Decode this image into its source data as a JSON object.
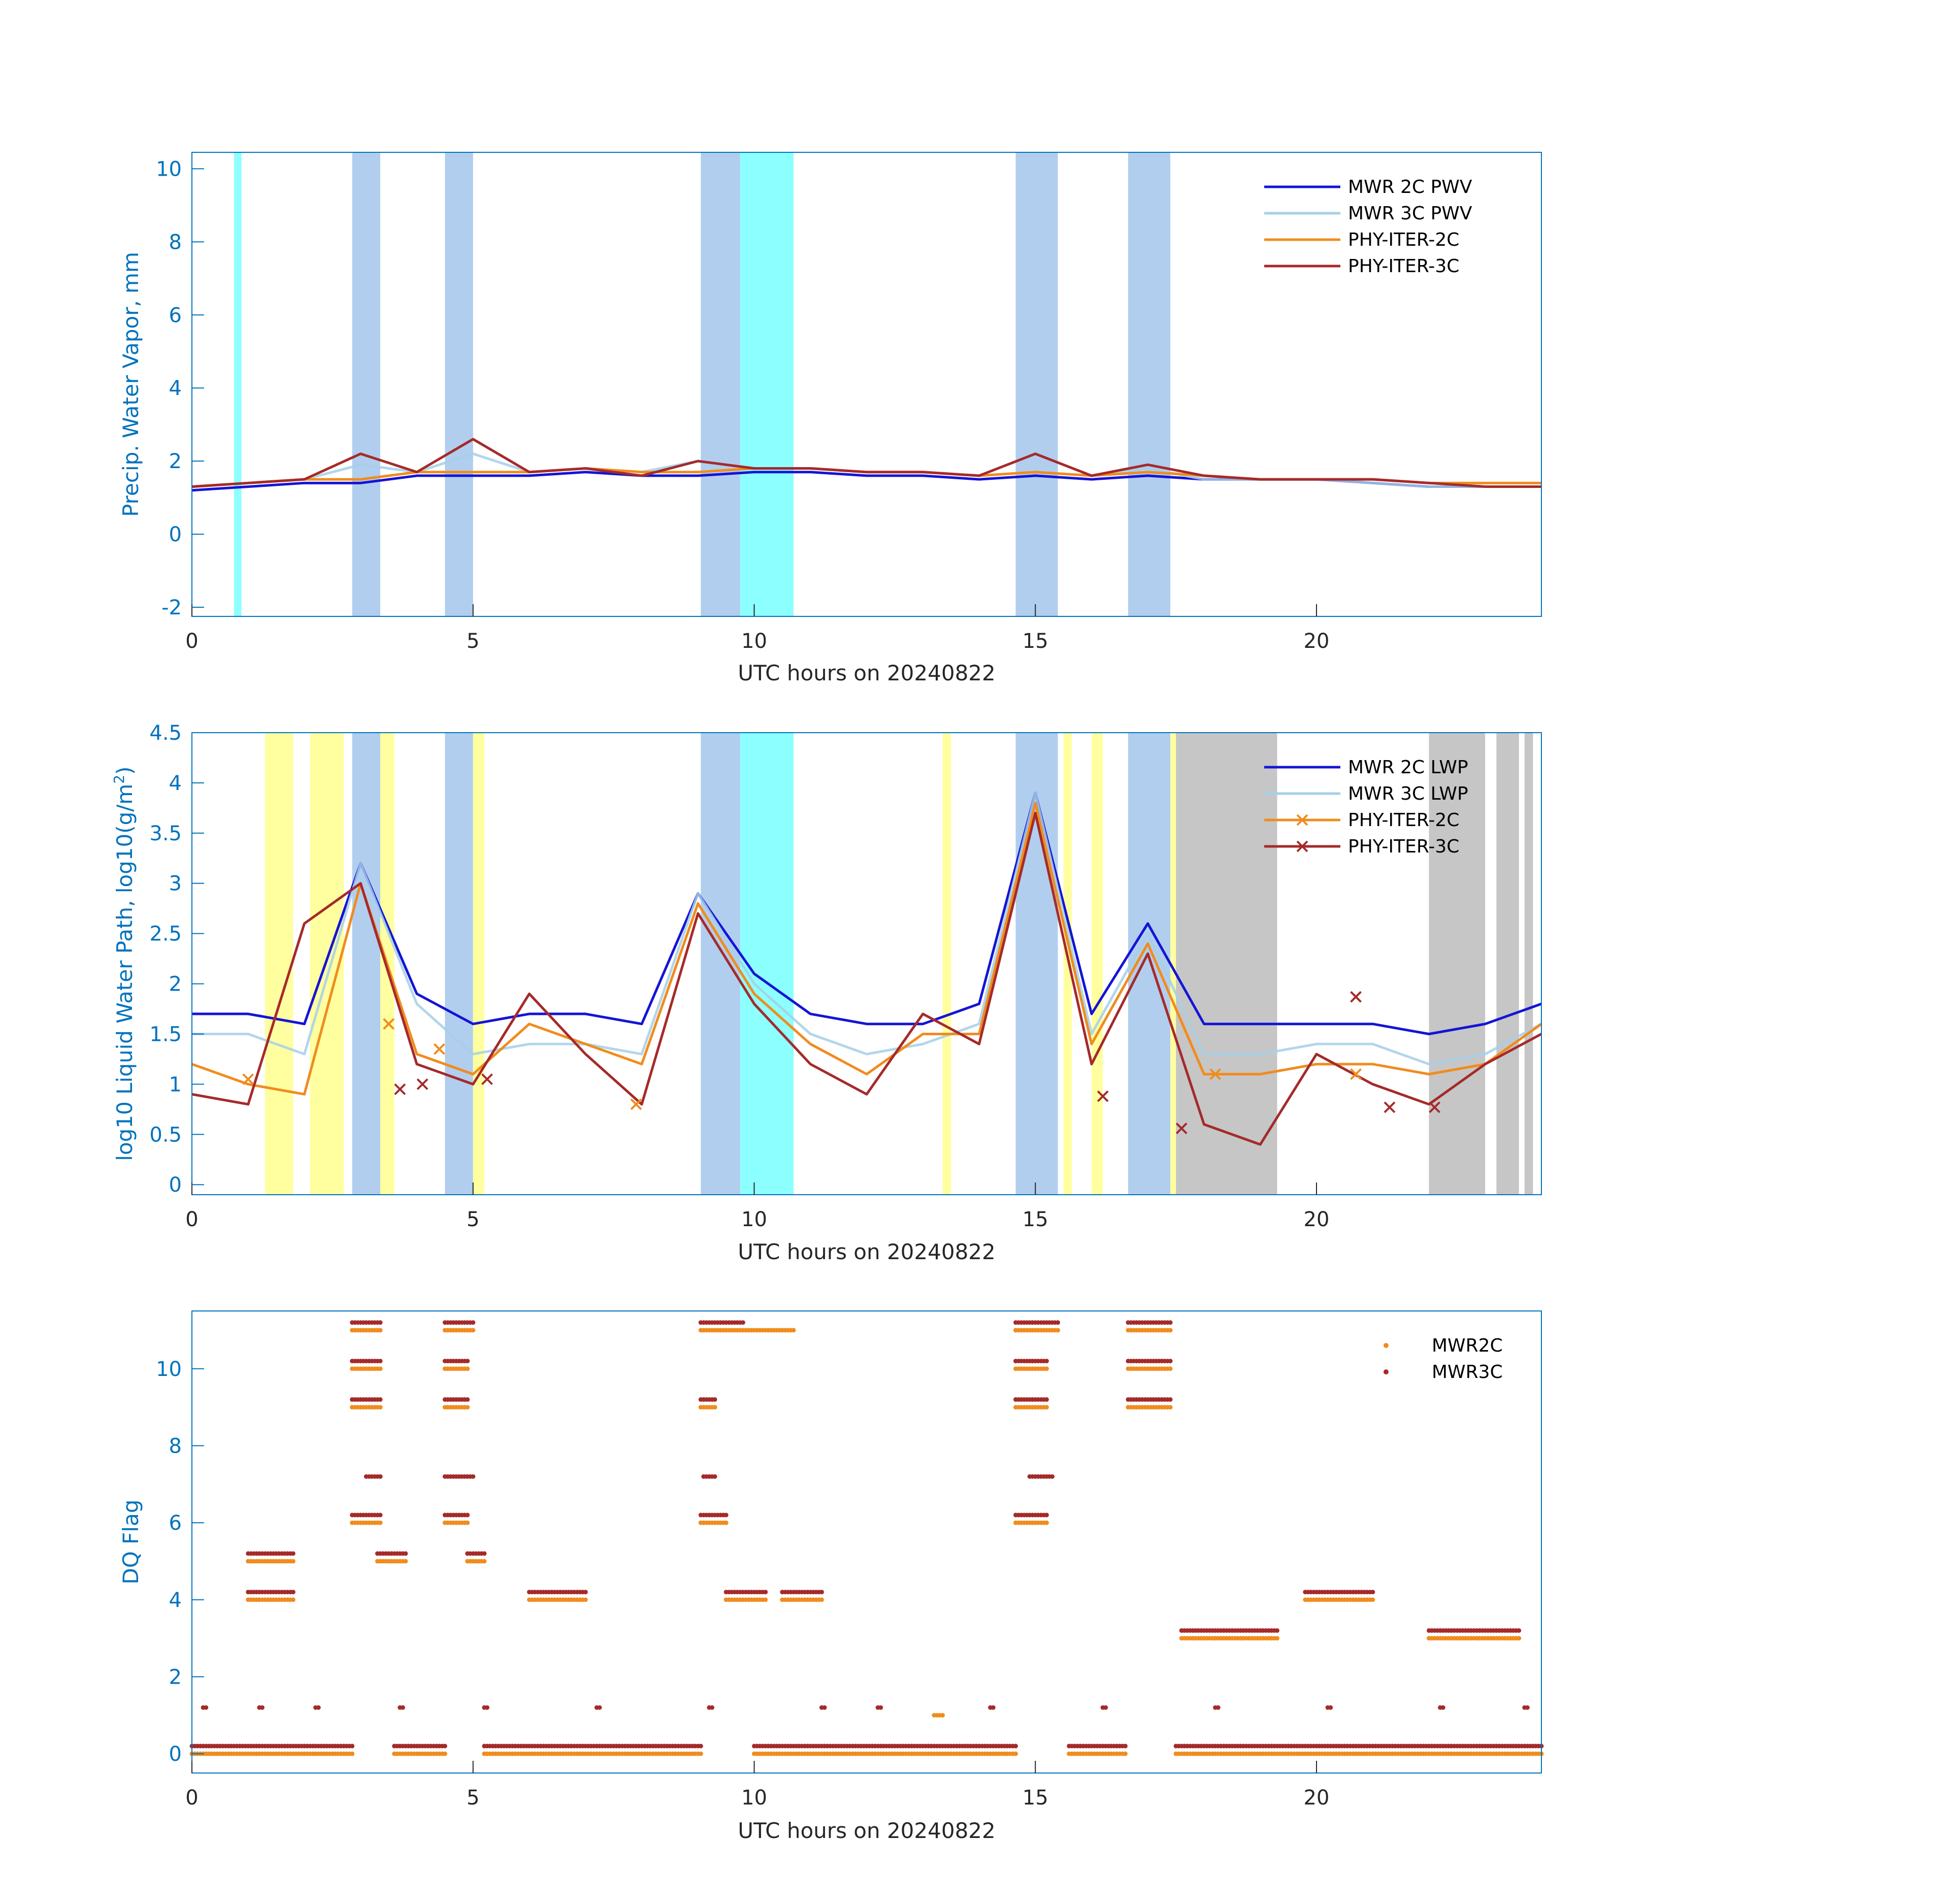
{
  "figure": {
    "date": "20240822"
  },
  "chart_data": [
    {
      "id": "pwv",
      "type": "line",
      "xlabel": "UTC hours on 20240822",
      "ylabel": "Precip. Water Vapor, mm",
      "xlim": [
        0,
        24
      ],
      "ylim": [
        -2.25,
        10.45
      ],
      "xticks": [
        0,
        5,
        10,
        15,
        20
      ],
      "yticks": [
        -2,
        0,
        2,
        4,
        6,
        8,
        10
      ],
      "legend": [
        "MWR 2C PWV",
        "MWR 3C PWV",
        "PHY-ITER-2C",
        "PHY-ITER-3C"
      ],
      "legend_position": "top-right",
      "series_colors": [
        "#1414d6",
        "#a6cfe8",
        "#f08c1e",
        "#a52a2a"
      ],
      "x": [
        0,
        1,
        2,
        3,
        4,
        5,
        6,
        7,
        8,
        9,
        10,
        11,
        12,
        13,
        14,
        15,
        16,
        17,
        18,
        19,
        20,
        21,
        22,
        23,
        24
      ],
      "series": [
        {
          "name": "MWR 2C PWV",
          "values": [
            1.2,
            1.3,
            1.4,
            1.4,
            1.6,
            1.6,
            1.6,
            1.7,
            1.6,
            1.6,
            1.7,
            1.7,
            1.6,
            1.6,
            1.5,
            1.6,
            1.5,
            1.6,
            1.5,
            1.5,
            1.5,
            1.4,
            1.3,
            1.3,
            1.3
          ]
        },
        {
          "name": "MWR 3C PWV",
          "values": [
            1.3,
            1.4,
            1.5,
            1.9,
            1.7,
            2.2,
            1.7,
            1.8,
            1.7,
            2.0,
            1.8,
            1.8,
            1.7,
            1.7,
            1.6,
            2.2,
            1.6,
            1.8,
            1.5,
            1.5,
            1.5,
            1.4,
            1.3,
            1.3,
            1.3
          ]
        },
        {
          "name": "PHY-ITER-2C",
          "values": [
            1.3,
            1.4,
            1.5,
            1.5,
            1.7,
            1.7,
            1.7,
            1.8,
            1.7,
            1.7,
            1.8,
            1.8,
            1.7,
            1.7,
            1.6,
            1.7,
            1.6,
            1.7,
            1.6,
            1.5,
            1.5,
            1.5,
            1.4,
            1.4,
            1.4
          ]
        },
        {
          "name": "PHY-ITER-3C",
          "values": [
            1.3,
            1.4,
            1.5,
            2.2,
            1.7,
            2.6,
            1.7,
            1.8,
            1.6,
            2.0,
            1.8,
            1.8,
            1.7,
            1.7,
            1.6,
            2.2,
            1.6,
            1.9,
            1.6,
            1.5,
            1.5,
            1.5,
            1.4,
            1.3,
            1.3
          ]
        }
      ],
      "shaded_spans": [
        {
          "kind": "precip",
          "start": 2.85,
          "end": 3.35
        },
        {
          "kind": "precip",
          "start": 4.5,
          "end": 5.0
        },
        {
          "kind": "precip",
          "start": 9.05,
          "end": 9.75
        },
        {
          "kind": "precip",
          "start": 14.65,
          "end": 15.4
        },
        {
          "kind": "precip",
          "start": 16.65,
          "end": 17.4
        },
        {
          "kind": "cyan",
          "start": 0.75,
          "end": 0.88
        },
        {
          "kind": "cyan",
          "start": 9.75,
          "end": 10.7
        }
      ]
    },
    {
      "id": "lwp",
      "type": "line",
      "xlabel": "UTC hours on 20240822",
      "ylabel": "log10 Liquid Water Path, log10(g/m",
      "ylabel_superscript": "2",
      "ylabel_suffix": ")",
      "xlim": [
        0,
        24
      ],
      "ylim": [
        -0.1,
        4.5
      ],
      "xticks": [
        0,
        5,
        10,
        15,
        20
      ],
      "yticks": [
        0,
        0.5,
        1,
        1.5,
        2,
        2.5,
        3,
        3.5,
        4,
        4.5
      ],
      "legend": [
        "MWR 2C LWP",
        "MWR 3C LWP",
        "PHY-ITER-2C",
        "PHY-ITER-3C"
      ],
      "legend_position": "top-right",
      "series_colors": [
        "#1414d6",
        "#a6cfe8",
        "#f08c1e",
        "#a52a2a"
      ],
      "x": [
        0,
        1,
        2,
        3,
        4,
        5,
        6,
        7,
        8,
        9,
        10,
        11,
        12,
        13,
        14,
        15,
        16,
        17,
        18,
        19,
        20,
        21,
        22,
        23,
        24
      ],
      "series": [
        {
          "name": "MWR 2C LWP",
          "values": [
            1.7,
            1.7,
            1.6,
            3.2,
            1.9,
            1.6,
            1.7,
            1.7,
            1.6,
            2.9,
            2.1,
            1.7,
            1.6,
            1.6,
            1.8,
            3.9,
            1.7,
            2.6,
            1.6,
            1.6,
            1.6,
            1.6,
            1.5,
            1.6,
            1.8
          ]
        },
        {
          "name": "MWR 3C LWP",
          "values": [
            1.5,
            1.5,
            1.3,
            3.2,
            1.8,
            1.3,
            1.4,
            1.4,
            1.3,
            2.9,
            2.0,
            1.5,
            1.3,
            1.4,
            1.6,
            3.9,
            1.5,
            2.5,
            1.3,
            1.3,
            1.4,
            1.4,
            1.2,
            1.3,
            1.6
          ]
        },
        {
          "name": "PHY-ITER-2C",
          "values": [
            1.2,
            1.0,
            0.9,
            3.0,
            1.3,
            1.1,
            1.6,
            1.4,
            1.2,
            2.8,
            1.9,
            1.4,
            1.1,
            1.5,
            1.5,
            3.8,
            1.4,
            2.4,
            1.1,
            1.1,
            1.2,
            1.2,
            1.1,
            1.2,
            1.6
          ]
        },
        {
          "name": "PHY-ITER-3C",
          "values": [
            0.9,
            0.8,
            2.6,
            3.0,
            1.2,
            1.0,
            1.9,
            1.3,
            0.8,
            2.7,
            1.8,
            1.2,
            0.9,
            1.7,
            1.4,
            3.7,
            1.2,
            2.3,
            0.6,
            0.4,
            1.3,
            1.0,
            0.8,
            1.2,
            1.5
          ]
        }
      ],
      "markers": [
        {
          "series": "PHY-ITER-2C",
          "x": 1.0,
          "y": 1.05
        },
        {
          "series": "PHY-ITER-2C",
          "x": 3.5,
          "y": 1.6
        },
        {
          "series": "PHY-ITER-2C",
          "x": 4.4,
          "y": 1.35
        },
        {
          "series": "PHY-ITER-2C",
          "x": 7.9,
          "y": 0.8
        },
        {
          "series": "PHY-ITER-2C",
          "x": 18.2,
          "y": 1.1
        },
        {
          "series": "PHY-ITER-2C",
          "x": 20.7,
          "y": 1.1
        },
        {
          "series": "PHY-ITER-3C",
          "x": 3.7,
          "y": 0.95
        },
        {
          "series": "PHY-ITER-3C",
          "x": 4.1,
          "y": 1.0
        },
        {
          "series": "PHY-ITER-3C",
          "x": 5.25,
          "y": 1.05
        },
        {
          "series": "PHY-ITER-3C",
          "x": 16.2,
          "y": 0.88
        },
        {
          "series": "PHY-ITER-3C",
          "x": 17.6,
          "y": 0.56
        },
        {
          "series": "PHY-ITER-3C",
          "x": 20.7,
          "y": 1.87
        },
        {
          "series": "PHY-ITER-3C",
          "x": 21.3,
          "y": 0.77
        },
        {
          "series": "PHY-ITER-3C",
          "x": 22.1,
          "y": 0.77
        }
      ],
      "shaded_spans": [
        {
          "kind": "precip",
          "start": 2.85,
          "end": 3.35
        },
        {
          "kind": "precip",
          "start": 4.5,
          "end": 5.0
        },
        {
          "kind": "precip",
          "start": 9.05,
          "end": 9.75
        },
        {
          "kind": "precip",
          "start": 14.65,
          "end": 15.4
        },
        {
          "kind": "precip",
          "start": 16.65,
          "end": 17.4
        },
        {
          "kind": "cyan",
          "start": 9.75,
          "end": 10.7
        },
        {
          "kind": "yellow",
          "start": 1.3,
          "end": 1.8
        },
        {
          "kind": "yellow",
          "start": 2.1,
          "end": 2.7
        },
        {
          "kind": "yellow",
          "start": 3.35,
          "end": 3.6
        },
        {
          "kind": "yellow",
          "start": 5.0,
          "end": 5.2
        },
        {
          "kind": "yellow",
          "start": 13.35,
          "end": 13.5
        },
        {
          "kind": "yellow",
          "start": 15.5,
          "end": 15.65
        },
        {
          "kind": "yellow",
          "start": 16.0,
          "end": 16.2
        },
        {
          "kind": "yellow",
          "start": 17.4,
          "end": 17.5
        },
        {
          "kind": "gray",
          "start": 17.5,
          "end": 19.3
        },
        {
          "kind": "gray",
          "start": 22.0,
          "end": 23.0
        },
        {
          "kind": "gray",
          "start": 23.2,
          "end": 23.6
        },
        {
          "kind": "gray",
          "start": 23.7,
          "end": 23.85
        }
      ]
    },
    {
      "id": "dqflag",
      "type": "scatter",
      "xlabel": "UTC hours on 20240822",
      "ylabel": "DQ Flag",
      "xlim": [
        0,
        24
      ],
      "ylim": [
        -0.5,
        11.5
      ],
      "xticks": [
        0,
        5,
        10,
        15,
        20
      ],
      "yticks": [
        0,
        2,
        4,
        6,
        8,
        10
      ],
      "legend": [
        "MWR2C",
        "MWR3C"
      ],
      "legend_position": "top-right",
      "series_colors": [
        "#f08c1e",
        "#a52a2a"
      ],
      "series": [
        {
          "name": "MWR2C",
          "runs": [
            {
              "y": 0,
              "x": [
                [
                  0,
                  2.85
                ],
                [
                  3.6,
                  4.5
                ],
                [
                  5.2,
                  9.05
                ],
                [
                  10.0,
                  14.65
                ],
                [
                  15.6,
                  16.6
                ],
                [
                  17.5,
                  24
                ]
              ]
            },
            {
              "y": 3,
              "x": [
                [
                  17.6,
                  19.3
                ],
                [
                  22.0,
                  23.6
                ]
              ]
            },
            {
              "y": 4,
              "x": [
                [
                  1.0,
                  1.8
                ],
                [
                  6.0,
                  7.0
                ],
                [
                  9.5,
                  10.2
                ],
                [
                  10.5,
                  11.2
                ],
                [
                  19.8,
                  21.0
                ]
              ]
            },
            {
              "y": 5,
              "x": [
                [
                  1.0,
                  1.8
                ],
                [
                  3.3,
                  3.8
                ],
                [
                  4.9,
                  5.2
                ]
              ]
            },
            {
              "y": 6,
              "x": [
                [
                  2.85,
                  3.35
                ],
                [
                  4.5,
                  4.9
                ],
                [
                  9.05,
                  9.5
                ],
                [
                  14.65,
                  15.2
                ]
              ]
            },
            {
              "y": 9,
              "x": [
                [
                  2.85,
                  3.35
                ],
                [
                  4.5,
                  4.9
                ],
                [
                  9.05,
                  9.3
                ],
                [
                  14.65,
                  15.2
                ],
                [
                  16.65,
                  17.4
                ]
              ]
            },
            {
              "y": 10,
              "x": [
                [
                  2.85,
                  3.35
                ],
                [
                  4.5,
                  4.9
                ],
                [
                  14.65,
                  15.2
                ],
                [
                  16.65,
                  17.4
                ]
              ]
            },
            {
              "y": 11,
              "x": [
                [
                  2.85,
                  3.35
                ],
                [
                  4.5,
                  5.0
                ],
                [
                  9.05,
                  10.7
                ],
                [
                  14.65,
                  15.4
                ],
                [
                  16.65,
                  17.4
                ]
              ]
            },
            {
              "y": 1,
              "x": [
                [
                  13.2,
                  13.35
                ]
              ]
            }
          ]
        },
        {
          "name": "MWR3C",
          "runs": [
            {
              "y": 0.2,
              "x": [
                [
                  0,
                  2.85
                ],
                [
                  3.6,
                  4.5
                ],
                [
                  5.2,
                  9.05
                ],
                [
                  10.0,
                  14.65
                ],
                [
                  15.6,
                  16.6
                ],
                [
                  17.5,
                  24
                ]
              ]
            },
            {
              "y": 3.2,
              "x": [
                [
                  17.6,
                  19.3
                ],
                [
                  22.0,
                  23.6
                ]
              ]
            },
            {
              "y": 4.2,
              "x": [
                [
                  1.0,
                  1.8
                ],
                [
                  6.0,
                  7.0
                ],
                [
                  9.5,
                  10.2
                ],
                [
                  10.5,
                  11.2
                ],
                [
                  19.8,
                  21.0
                ]
              ]
            },
            {
              "y": 5.2,
              "x": [
                [
                  1.0,
                  1.8
                ],
                [
                  3.3,
                  3.8
                ],
                [
                  4.9,
                  5.2
                ]
              ]
            },
            {
              "y": 6.2,
              "x": [
                [
                  2.85,
                  3.35
                ],
                [
                  4.5,
                  4.9
                ],
                [
                  9.05,
                  9.5
                ],
                [
                  14.65,
                  15.2
                ]
              ]
            },
            {
              "y": 7.2,
              "x": [
                [
                  3.1,
                  3.35
                ],
                [
                  4.5,
                  5.0
                ],
                [
                  9.1,
                  9.3
                ],
                [
                  14.9,
                  15.3
                ]
              ]
            },
            {
              "y": 9.2,
              "x": [
                [
                  2.85,
                  3.35
                ],
                [
                  4.5,
                  4.9
                ],
                [
                  9.05,
                  9.3
                ],
                [
                  14.65,
                  15.2
                ],
                [
                  16.65,
                  17.4
                ]
              ]
            },
            {
              "y": 10.2,
              "x": [
                [
                  2.85,
                  3.35
                ],
                [
                  4.5,
                  4.9
                ],
                [
                  14.65,
                  15.2
                ],
                [
                  16.65,
                  17.4
                ]
              ]
            },
            {
              "y": 11.2,
              "x": [
                [
                  2.85,
                  3.35
                ],
                [
                  4.5,
                  5.0
                ],
                [
                  9.05,
                  9.8
                ],
                [
                  14.65,
                  15.4
                ],
                [
                  16.65,
                  17.4
                ]
              ]
            },
            {
              "y": 1.2,
              "x": [
                [
                  0.2,
                  0.25
                ],
                [
                  1.2,
                  1.25
                ],
                [
                  2.2,
                  2.25
                ],
                [
                  3.7,
                  3.75
                ],
                [
                  5.2,
                  5.25
                ],
                [
                  7.2,
                  7.25
                ],
                [
                  9.2,
                  9.25
                ],
                [
                  11.2,
                  11.25
                ],
                [
                  12.2,
                  12.25
                ],
                [
                  14.2,
                  14.25
                ],
                [
                  16.2,
                  16.25
                ],
                [
                  18.2,
                  18.25
                ],
                [
                  20.2,
                  20.25
                ],
                [
                  22.2,
                  22.25
                ],
                [
                  23.7,
                  23.75
                ]
              ]
            }
          ]
        }
      ]
    }
  ]
}
